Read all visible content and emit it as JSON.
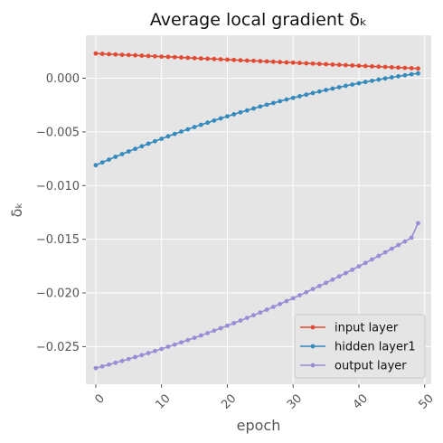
{
  "chart_data": {
    "type": "line",
    "title": "Average local gradient δₖ",
    "xlabel": "epoch",
    "ylabel": "δₖ",
    "xlim": [
      -1.5,
      51.0
    ],
    "ylim": [
      -0.0285,
      0.004
    ],
    "x_ticks": [
      "0",
      "10",
      "20",
      "30",
      "40",
      "50"
    ],
    "x_tick_values": [
      0,
      10,
      20,
      30,
      40,
      50
    ],
    "y_ticks": [
      "0.000",
      "−0.005",
      "−0.010",
      "−0.015",
      "−0.020",
      "−0.025"
    ],
    "y_tick_values": [
      0.0,
      -0.005,
      -0.01,
      -0.015,
      -0.02,
      -0.025
    ],
    "grid": true,
    "style": "ggplot",
    "legend_position": "lower-right",
    "x": [
      0,
      1,
      2,
      3,
      4,
      5,
      6,
      7,
      8,
      9,
      10,
      11,
      12,
      13,
      14,
      15,
      16,
      17,
      18,
      19,
      20,
      21,
      22,
      23,
      24,
      25,
      26,
      27,
      28,
      29,
      30,
      31,
      32,
      33,
      34,
      35,
      36,
      37,
      38,
      39,
      40,
      41,
      42,
      43,
      44,
      45,
      46,
      47,
      48,
      49
    ],
    "series": [
      {
        "name": "input layer",
        "color": "#E24A33",
        "values": [
          0.0023,
          0.00227,
          0.00224,
          0.00221,
          0.00218,
          0.00216,
          0.00213,
          0.0021,
          0.00207,
          0.00204,
          0.00201,
          0.00199,
          0.00196,
          0.00193,
          0.0019,
          0.00187,
          0.00184,
          0.00182,
          0.00179,
          0.00176,
          0.00173,
          0.0017,
          0.00167,
          0.00164,
          0.00162,
          0.00159,
          0.00156,
          0.00153,
          0.0015,
          0.00147,
          0.00145,
          0.00142,
          0.00139,
          0.00136,
          0.00133,
          0.0013,
          0.00127,
          0.00125,
          0.00122,
          0.00119,
          0.00116,
          0.00113,
          0.0011,
          0.00108,
          0.00105,
          0.00102,
          0.00099,
          0.00096,
          0.00093,
          0.0009
        ]
      },
      {
        "name": "hidden layer1",
        "color": "#348ABD",
        "values": [
          -0.0081,
          -0.00784,
          -0.00758,
          -0.00732,
          -0.00707,
          -0.00682,
          -0.00658,
          -0.00634,
          -0.0061,
          -0.00587,
          -0.00564,
          -0.00541,
          -0.00519,
          -0.00497,
          -0.00476,
          -0.00455,
          -0.00434,
          -0.00414,
          -0.00394,
          -0.00374,
          -0.00355,
          -0.00336,
          -0.00318,
          -0.003,
          -0.00282,
          -0.00264,
          -0.00247,
          -0.00231,
          -0.00214,
          -0.00198,
          -0.00183,
          -0.00168,
          -0.00153,
          -0.00138,
          -0.00124,
          -0.0011,
          -0.00097,
          -0.00084,
          -0.00071,
          -0.00059,
          -0.00047,
          -0.00035,
          -0.00024,
          -0.00013,
          -2e-05,
          8e-05,
          0.00018,
          0.00027,
          0.00037,
          0.00045
        ]
      },
      {
        "name": "output layer",
        "color": "#988ED5",
        "values": [
          -0.027,
          -0.02684,
          -0.02667,
          -0.0265,
          -0.02633,
          -0.02615,
          -0.02597,
          -0.02579,
          -0.0256,
          -0.02541,
          -0.02521,
          -0.02501,
          -0.02481,
          -0.0246,
          -0.02439,
          -0.02418,
          -0.02396,
          -0.02374,
          -0.02351,
          -0.02328,
          -0.02305,
          -0.02281,
          -0.02257,
          -0.02232,
          -0.02207,
          -0.02182,
          -0.02156,
          -0.0213,
          -0.02103,
          -0.02076,
          -0.02049,
          -0.02021,
          -0.01993,
          -0.01964,
          -0.01935,
          -0.01906,
          -0.01876,
          -0.01845,
          -0.01815,
          -0.01784,
          -0.01752,
          -0.0172,
          -0.01688,
          -0.01655,
          -0.01622,
          -0.01588,
          -0.01554,
          -0.0152,
          -0.01485,
          -0.0135
        ]
      }
    ]
  }
}
